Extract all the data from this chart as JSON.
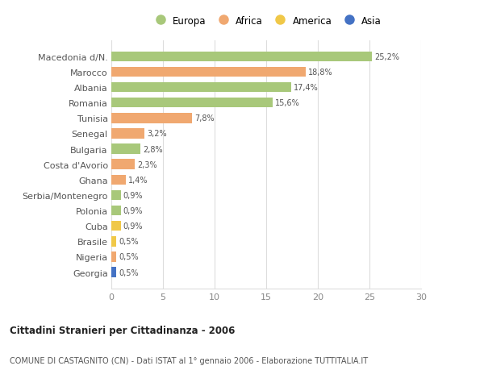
{
  "categories": [
    "Macedonia d/N.",
    "Marocco",
    "Albania",
    "Romania",
    "Tunisia",
    "Senegal",
    "Bulgaria",
    "Costa d'Avorio",
    "Ghana",
    "Serbia/Montenegro",
    "Polonia",
    "Cuba",
    "Brasile",
    "Nigeria",
    "Georgia"
  ],
  "values": [
    25.2,
    18.8,
    17.4,
    15.6,
    7.8,
    3.2,
    2.8,
    2.3,
    1.4,
    0.9,
    0.9,
    0.9,
    0.5,
    0.5,
    0.5
  ],
  "labels": [
    "25,2%",
    "18,8%",
    "17,4%",
    "15,6%",
    "7,8%",
    "3,2%",
    "2,8%",
    "2,3%",
    "1,4%",
    "0,9%",
    "0,9%",
    "0,9%",
    "0,5%",
    "0,5%",
    "0,5%"
  ],
  "colors": [
    "#a8c87a",
    "#f0a870",
    "#a8c87a",
    "#a8c87a",
    "#f0a870",
    "#f0a870",
    "#a8c87a",
    "#f0a870",
    "#f0a870",
    "#a8c87a",
    "#a8c87a",
    "#f0c848",
    "#f0c848",
    "#f0a870",
    "#4472c4"
  ],
  "legend_labels": [
    "Europa",
    "Africa",
    "America",
    "Asia"
  ],
  "legend_colors": [
    "#a8c87a",
    "#f0a870",
    "#f0c848",
    "#4472c4"
  ],
  "title1": "Cittadini Stranieri per Cittadinanza - 2006",
  "title2": "COMUNE DI CASTAGNITO (CN) - Dati ISTAT al 1° gennaio 2006 - Elaborazione TUTTITALIA.IT",
  "xlim": [
    0,
    30
  ],
  "xticks": [
    0,
    5,
    10,
    15,
    20,
    25,
    30
  ],
  "bg_color": "#ffffff",
  "grid_color": "#dddddd",
  "bar_height": 0.65
}
